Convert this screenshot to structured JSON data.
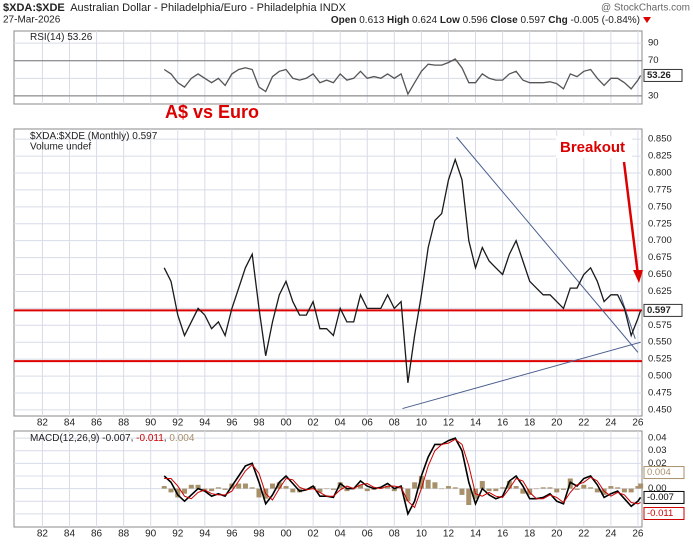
{
  "header": {
    "symbol": "$XDA:$XDE",
    "name": "Australian Dollar - Philadelphia/Euro - Philadelphia INDX",
    "source": "@ StockCharts.com",
    "date": "27-Mar-2026",
    "quote": [
      {
        "label": "Open",
        "value": "0.613"
      },
      {
        "label": "High",
        "value": "0.624"
      },
      {
        "label": "Low",
        "value": "0.596"
      },
      {
        "label": "Close",
        "value": "0.597"
      },
      {
        "label": "Chg",
        "value": "-0.005 (-0.84%)"
      }
    ]
  },
  "annotations": {
    "title": "A$ vs Euro",
    "callout": "Breakout"
  },
  "chart_data": [
    {
      "type": "line",
      "legend": "RSI(14)",
      "color": "#555555",
      "x": [
        1991,
        1991.5,
        1992,
        1992.5,
        1993,
        1993.5,
        1994,
        1994.5,
        1995,
        1995.5,
        1996,
        1996.5,
        1997,
        1997.5,
        1998,
        1998.5,
        1999,
        1999.5,
        2000,
        2000.5,
        2001,
        2001.5,
        2002,
        2002.5,
        2003,
        2003.5,
        2004,
        2004.5,
        2005,
        2005.5,
        2006,
        2006.5,
        2007,
        2007.5,
        2008,
        2008.5,
        2009,
        2009.5,
        2010,
        2010.5,
        2011,
        2011.5,
        2012,
        2012.5,
        2013,
        2013.5,
        2014,
        2014.5,
        2015,
        2015.5,
        2016,
        2016.5,
        2017,
        2017.5,
        2018,
        2018.5,
        2019,
        2019.5,
        2020,
        2020.5,
        2021,
        2021.5,
        2022,
        2022.5,
        2023,
        2023.5,
        2024,
        2024.5,
        2025,
        2025.5,
        2026,
        2026.2
      ],
      "values": [
        60,
        55,
        45,
        40,
        50,
        55,
        50,
        45,
        50,
        42,
        55,
        60,
        62,
        60,
        40,
        35,
        52,
        58,
        60,
        50,
        48,
        50,
        55,
        45,
        48,
        45,
        55,
        48,
        50,
        58,
        50,
        52,
        50,
        55,
        50,
        55,
        32,
        45,
        58,
        66,
        65,
        65,
        68,
        72,
        62,
        45,
        45,
        55,
        50,
        48,
        48,
        55,
        58,
        48,
        45,
        45,
        45,
        46,
        44,
        38,
        55,
        52,
        58,
        60,
        50,
        42,
        50,
        50,
        45,
        38,
        48,
        53.26
      ],
      "xlim": [
        1979.9,
        2026.3
      ],
      "ylim": [
        20.8,
        103.8
      ],
      "yticks": [
        30,
        50,
        70,
        90
      ],
      "bands": [
        30,
        70
      ],
      "xtick_labels": false,
      "xticks": [
        {
          "value": 1982,
          "label": "82"
        },
        {
          "value": 1984,
          "label": "84"
        },
        {
          "value": 1986,
          "label": "86"
        },
        {
          "value": 1988,
          "label": "88"
        },
        {
          "value": 1990,
          "label": "90"
        },
        {
          "value": 1992,
          "label": "92"
        },
        {
          "value": 1994,
          "label": "94"
        },
        {
          "value": 1996,
          "label": "96"
        },
        {
          "value": 1998,
          "label": "98"
        },
        {
          "value": 2000,
          "label": "00"
        },
        {
          "value": 2002,
          "label": "02"
        },
        {
          "value": 2004,
          "label": "04"
        },
        {
          "value": 2006,
          "label": "06"
        },
        {
          "value": 2008,
          "label": "08"
        },
        {
          "value": 2010,
          "label": "10"
        },
        {
          "value": 2012,
          "label": "12"
        },
        {
          "value": 2014,
          "label": "14"
        },
        {
          "value": 2016,
          "label": "16"
        },
        {
          "value": 2018,
          "label": "18"
        },
        {
          "value": 2020,
          "label": "20"
        },
        {
          "value": 2022,
          "label": "22"
        },
        {
          "value": 2024,
          "label": "24"
        },
        {
          "value": 2026,
          "label": "26"
        }
      ]
    },
    {
      "type": "line",
      "legend": "$XDA:$XDE (Monthly)",
      "subtitle": "Volume undef",
      "color": "#1a1a1a",
      "x": [
        1991,
        1991.5,
        1992,
        1992.5,
        1993,
        1993.5,
        1994,
        1994.5,
        1995,
        1995.5,
        1996,
        1996.5,
        1997,
        1997.5,
        1998,
        1998.5,
        1999,
        1999.5,
        2000,
        2000.5,
        2001,
        2001.5,
        2002,
        2002.5,
        2003,
        2003.5,
        2004,
        2004.5,
        2005,
        2005.5,
        2006,
        2006.5,
        2007,
        2007.5,
        2008,
        2008.5,
        2009,
        2009.5,
        2010,
        2010.5,
        2011,
        2011.5,
        2012,
        2012.5,
        2013,
        2013.5,
        2014,
        2014.5,
        2015,
        2015.5,
        2016,
        2016.5,
        2017,
        2017.5,
        2018,
        2018.5,
        2019,
        2019.5,
        2020,
        2020.5,
        2021,
        2021.5,
        2022,
        2022.5,
        2023,
        2023.5,
        2024,
        2024.5,
        2025,
        2025.5,
        2026,
        2026.2
      ],
      "values": [
        0.66,
        0.64,
        0.59,
        0.56,
        0.58,
        0.6,
        0.59,
        0.57,
        0.58,
        0.56,
        0.6,
        0.63,
        0.66,
        0.68,
        0.6,
        0.53,
        0.58,
        0.62,
        0.64,
        0.61,
        0.59,
        0.59,
        0.61,
        0.57,
        0.57,
        0.56,
        0.6,
        0.58,
        0.58,
        0.62,
        0.6,
        0.6,
        0.6,
        0.62,
        0.6,
        0.61,
        0.49,
        0.56,
        0.62,
        0.69,
        0.73,
        0.74,
        0.79,
        0.82,
        0.79,
        0.7,
        0.66,
        0.69,
        0.67,
        0.66,
        0.65,
        0.68,
        0.7,
        0.67,
        0.64,
        0.63,
        0.62,
        0.62,
        0.61,
        0.6,
        0.63,
        0.63,
        0.65,
        0.66,
        0.64,
        0.61,
        0.62,
        0.62,
        0.6,
        0.56,
        0.585,
        0.597
      ],
      "xlim": [
        1979.9,
        2026.3
      ],
      "ylim": [
        0.441,
        0.865
      ],
      "xtick_labels": true,
      "yticks": [
        {
          "value": 0.45,
          "label": "0.450"
        },
        0.475,
        {
          "value": 0.5,
          "label": "0.500"
        },
        0.525,
        {
          "value": 0.55,
          "label": "0.550"
        },
        0.575,
        {
          "value": 0.6,
          "label": "0.600"
        },
        0.625,
        {
          "value": 0.65,
          "label": "0.650"
        },
        0.675,
        {
          "value": 0.7,
          "label": "0.700"
        },
        0.725,
        {
          "value": 0.75,
          "label": "0.750"
        },
        0.775,
        {
          "value": 0.8,
          "label": "0.800"
        },
        0.825,
        {
          "value": 0.85,
          "label": "0.850"
        }
      ],
      "hlines": [
        0.597,
        0.522
      ],
      "hline_color": "#dd0000",
      "trendlines": [
        {
          "x": [
            2012.6,
            2026.0
          ],
          "y": [
            0.853,
            0.535
          ]
        },
        {
          "x": [
            2008.6,
            2026.2
          ],
          "y": [
            0.452,
            0.55
          ]
        },
        {
          "x": [
            2024.7,
            2025.8
          ],
          "y": [
            0.62,
            0.555
          ]
        }
      ],
      "trend_color": "#4a5f8f",
      "xticks": [
        {
          "value": 1982,
          "label": "82"
        },
        {
          "value": 1984,
          "label": "84"
        },
        {
          "value": 1986,
          "label": "86"
        },
        {
          "value": 1988,
          "label": "88"
        },
        {
          "value": 1990,
          "label": "90"
        },
        {
          "value": 1992,
          "label": "92"
        },
        {
          "value": 1994,
          "label": "94"
        },
        {
          "value": 1996,
          "label": "96"
        },
        {
          "value": 1998,
          "label": "98"
        },
        {
          "value": 2000,
          "label": "00"
        },
        {
          "value": 2002,
          "label": "02"
        },
        {
          "value": 2004,
          "label": "04"
        },
        {
          "value": 2006,
          "label": "06"
        },
        {
          "value": 2008,
          "label": "08"
        },
        {
          "value": 2010,
          "label": "10"
        },
        {
          "value": 2012,
          "label": "12"
        },
        {
          "value": 2014,
          "label": "14"
        },
        {
          "value": 2016,
          "label": "16"
        },
        {
          "value": 2018,
          "label": "18"
        },
        {
          "value": 2020,
          "label": "20"
        },
        {
          "value": 2022,
          "label": "22"
        },
        {
          "value": 2024,
          "label": "24"
        },
        {
          "value": 2026,
          "label": "26"
        }
      ]
    },
    {
      "type": "macd",
      "legend": "MACD(12,26,9)",
      "x": [
        1991,
        1991.5,
        1992,
        1992.5,
        1993,
        1993.5,
        1994,
        1994.5,
        1995,
        1995.5,
        1996,
        1996.5,
        1997,
        1997.5,
        1998,
        1998.5,
        1999,
        1999.5,
        2000,
        2000.5,
        2001,
        2001.5,
        2002,
        2002.5,
        2003,
        2003.5,
        2004,
        2004.5,
        2005,
        2005.5,
        2006,
        2006.5,
        2007,
        2007.5,
        2008,
        2008.5,
        2009,
        2009.5,
        2010,
        2010.5,
        2011,
        2011.5,
        2012,
        2012.5,
        2013,
        2013.5,
        2014,
        2014.5,
        2015,
        2015.5,
        2016,
        2016.5,
        2017,
        2017.5,
        2018,
        2018.5,
        2019,
        2019.5,
        2020,
        2020.5,
        2021,
        2021.5,
        2022,
        2022.5,
        2023,
        2023.5,
        2024,
        2024.5,
        2025,
        2025.5,
        2026,
        2026.2
      ],
      "series": [
        {
          "style": "line",
          "color": "#000000",
          "values": [
            0.01,
            0.005,
            -0.005,
            -0.01,
            -0.005,
            0,
            -0.002,
            -0.006,
            -0.004,
            -0.006,
            0.002,
            0.01,
            0.018,
            0.02,
            0.005,
            -0.012,
            -0.005,
            0.005,
            0.01,
            0.004,
            -0.002,
            -0.001,
            0.002,
            -0.006,
            -0.006,
            -0.007,
            0.004,
            0,
            0,
            0.006,
            0.002,
            0,
            0.001,
            0.004,
            0,
            0.002,
            -0.02,
            -0.01,
            0.01,
            0.025,
            0.035,
            0.035,
            0.038,
            0.04,
            0.03,
            0.005,
            -0.012,
            0,
            -0.005,
            -0.008,
            -0.006,
            0.006,
            0.01,
            0.002,
            -0.008,
            -0.008,
            -0.007,
            -0.004,
            -0.01,
            -0.012,
            0.005,
            0.002,
            0.008,
            0.01,
            0.003,
            -0.007,
            -0.004,
            -0.002,
            -0.008,
            -0.014,
            -0.01,
            -0.007
          ]
        },
        {
          "style": "line",
          "color": "#cc0000",
          "values": [
            0.008,
            0.008,
            0.002,
            -0.006,
            -0.008,
            -0.003,
            -0.001,
            -0.004,
            -0.005,
            -0.005,
            -0.002,
            0.006,
            0.014,
            0.019,
            0.012,
            -0.004,
            -0.009,
            0,
            0.008,
            0.007,
            0.001,
            -0.001,
            0,
            -0.003,
            -0.006,
            -0.006,
            -0.001,
            0.002,
            0,
            0.003,
            0.004,
            0.001,
            0,
            0.002,
            0.002,
            0.001,
            -0.01,
            -0.015,
            0,
            0.018,
            0.03,
            0.035,
            0.036,
            0.039,
            0.035,
            0.018,
            -0.004,
            -0.006,
            -0.003,
            -0.006,
            -0.007,
            0,
            0.008,
            0.006,
            -0.003,
            -0.008,
            -0.008,
            -0.005,
            -0.007,
            -0.011,
            -0.003,
            0.003,
            0.005,
            0.009,
            0.006,
            -0.002,
            -0.006,
            -0.003,
            -0.005,
            -0.011,
            -0.012,
            -0.011
          ]
        },
        {
          "style": "bar",
          "color": "#a8906a",
          "values": [
            0.002,
            -0.003,
            -0.007,
            -0.004,
            0.003,
            0.003,
            -0.001,
            -0.002,
            0.001,
            -0.001,
            0.004,
            0.004,
            0.004,
            0.001,
            -0.007,
            -0.008,
            0.004,
            0.005,
            0.002,
            -0.003,
            -0.003,
            0,
            0.002,
            -0.003,
            0,
            -0.001,
            0.005,
            -0.002,
            0,
            0.003,
            -0.002,
            -0.001,
            0.001,
            0.002,
            -0.002,
            0.001,
            -0.01,
            0.005,
            0.01,
            0.007,
            0.005,
            0,
            0.002,
            0.001,
            -0.005,
            -0.013,
            -0.008,
            0.006,
            -0.002,
            -0.002,
            0.001,
            0.006,
            0.002,
            -0.004,
            -0.005,
            0,
            0.001,
            0.001,
            -0.003,
            -0.001,
            0.008,
            -0.001,
            0.003,
            0.001,
            -0.003,
            -0.005,
            0.002,
            0.001,
            -0.003,
            -0.003,
            0.002,
            0.004
          ]
        }
      ],
      "xlim": [
        1979.9,
        2026.3
      ],
      "ylim": [
        -0.0304,
        0.0456
      ],
      "xtick_labels": true,
      "yticks": [
        0.04,
        0.03,
        0.02,
        0.01,
        {
          "value": 0,
          "label": "0.00"
        },
        -0.01,
        -0.02
      ],
      "xticks": [
        {
          "value": 1982,
          "label": "82"
        },
        {
          "value": 1984,
          "label": "84"
        },
        {
          "value": 1986,
          "label": "86"
        },
        {
          "value": 1988,
          "label": "88"
        },
        {
          "value": 1990,
          "label": "90"
        },
        {
          "value": 1992,
          "label": "92"
        },
        {
          "value": 1994,
          "label": "94"
        },
        {
          "value": 1996,
          "label": "96"
        },
        {
          "value": 1998,
          "label": "98"
        },
        {
          "value": 2000,
          "label": "00"
        },
        {
          "value": 2002,
          "label": "02"
        },
        {
          "value": 2004,
          "label": "04"
        },
        {
          "value": 2006,
          "label": "06"
        },
        {
          "value": 2008,
          "label": "08"
        },
        {
          "value": 2010,
          "label": "10"
        },
        {
          "value": 2012,
          "label": "12"
        },
        {
          "value": 2014,
          "label": "14"
        },
        {
          "value": 2016,
          "label": "16"
        },
        {
          "value": 2018,
          "label": "18"
        },
        {
          "value": 2020,
          "label": "20"
        },
        {
          "value": 2022,
          "label": "22"
        },
        {
          "value": 2024,
          "label": "24"
        },
        {
          "value": 2026,
          "label": "26"
        }
      ]
    }
  ]
}
